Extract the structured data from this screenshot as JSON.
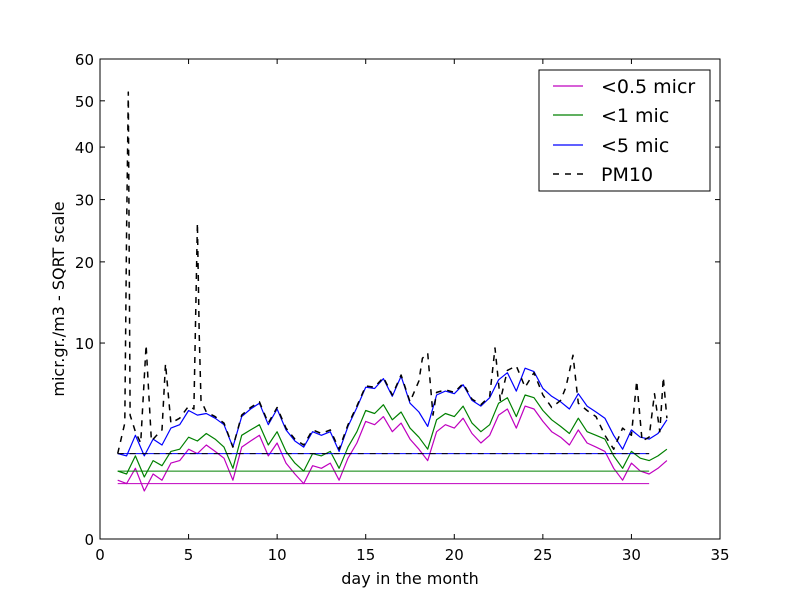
{
  "chart_data": {
    "type": "line",
    "title": "",
    "xlabel": "day in the month",
    "ylabel": "micr.gr./m3 - SQRT scale",
    "y_scale": "sqrt",
    "xlim": [
      0,
      35
    ],
    "ylim": [
      0,
      60
    ],
    "x_ticks": [
      0,
      5,
      10,
      15,
      20,
      25,
      30,
      35
    ],
    "y_ticks": [
      0,
      10,
      20,
      30,
      40,
      50,
      60
    ],
    "grid": false,
    "legend_position": "top-right",
    "series": [
      {
        "name": "<0.5 micr",
        "color": "#bf00bf",
        "style": "solid",
        "baseline": 0.8,
        "x": [
          1.0,
          1.5,
          2.0,
          2.5,
          3.0,
          3.5,
          4.0,
          4.5,
          5.0,
          5.5,
          6.0,
          6.5,
          7.0,
          7.5,
          8.0,
          8.5,
          9.0,
          9.5,
          10.0,
          10.5,
          11.0,
          11.5,
          12.0,
          12.5,
          13.0,
          13.5,
          14.0,
          14.5,
          15.0,
          15.5,
          16.0,
          16.5,
          17.0,
          17.5,
          18.0,
          18.5,
          19.0,
          19.5,
          20.0,
          20.5,
          21.0,
          21.5,
          22.0,
          22.5,
          23.0,
          23.5,
          24.0,
          24.5,
          25.0,
          25.5,
          26.0,
          26.5,
          27.0,
          27.5,
          28.0,
          28.5,
          29.0,
          29.5,
          30.0,
          30.5,
          31.0,
          31.5,
          32.0
        ],
        "y": [
          0.9,
          0.8,
          1.3,
          0.6,
          1.1,
          0.9,
          1.5,
          1.6,
          2.1,
          1.9,
          2.3,
          2.0,
          1.7,
          0.9,
          2.2,
          2.5,
          2.8,
          1.8,
          2.4,
          1.5,
          1.1,
          0.8,
          1.4,
          1.3,
          1.5,
          0.9,
          1.7,
          2.4,
          3.6,
          3.4,
          3.9,
          3.0,
          3.5,
          2.6,
          2.1,
          1.6,
          3.0,
          3.4,
          3.2,
          3.8,
          2.9,
          2.4,
          2.8,
          4.0,
          4.4,
          3.2,
          4.6,
          4.4,
          3.6,
          3.0,
          2.7,
          2.3,
          3.1,
          2.4,
          2.2,
          2.0,
          1.3,
          0.9,
          1.5,
          1.2,
          1.1,
          1.3,
          1.6
        ]
      },
      {
        "name": "<1 mic",
        "color": "#008000",
        "style": "solid",
        "baseline": 1.2,
        "x": [
          1.0,
          1.5,
          2.0,
          2.5,
          3.0,
          3.5,
          4.0,
          4.5,
          5.0,
          5.5,
          6.0,
          6.5,
          7.0,
          7.5,
          8.0,
          8.5,
          9.0,
          9.5,
          10.0,
          10.5,
          11.0,
          11.5,
          12.0,
          12.5,
          13.0,
          13.5,
          14.0,
          14.5,
          15.0,
          15.5,
          16.0,
          16.5,
          17.0,
          17.5,
          18.0,
          18.5,
          19.0,
          19.5,
          20.0,
          20.5,
          21.0,
          21.5,
          22.0,
          22.5,
          23.0,
          23.5,
          24.0,
          24.5,
          25.0,
          25.5,
          26.0,
          26.5,
          27.0,
          27.5,
          28.0,
          28.5,
          29.0,
          29.5,
          30.0,
          30.5,
          31.0,
          31.5,
          32.0
        ],
        "y": [
          1.2,
          1.1,
          1.8,
          1.0,
          1.6,
          1.4,
          2.0,
          2.1,
          2.7,
          2.5,
          2.9,
          2.6,
          2.2,
          1.3,
          2.8,
          3.1,
          3.4,
          2.3,
          3.0,
          2.0,
          1.5,
          1.2,
          1.9,
          1.8,
          2.0,
          1.3,
          2.2,
          3.0,
          4.3,
          4.1,
          4.7,
          3.7,
          4.2,
          3.2,
          2.7,
          2.1,
          3.7,
          4.1,
          3.9,
          4.6,
          3.5,
          3.0,
          3.4,
          4.8,
          5.2,
          3.9,
          5.4,
          5.2,
          4.3,
          3.7,
          3.3,
          2.9,
          3.8,
          3.0,
          2.8,
          2.6,
          1.8,
          1.3,
          2.0,
          1.7,
          1.6,
          1.8,
          2.1
        ]
      },
      {
        "name": "<5 mic",
        "color": "#0000ff",
        "style": "solid",
        "baseline": 1.9,
        "x": [
          1.0,
          1.5,
          2.0,
          2.5,
          3.0,
          3.5,
          4.0,
          4.5,
          5.0,
          5.5,
          6.0,
          6.5,
          7.0,
          7.5,
          8.0,
          8.5,
          9.0,
          9.5,
          10.0,
          10.5,
          11.0,
          11.5,
          12.0,
          12.5,
          13.0,
          13.5,
          14.0,
          14.5,
          15.0,
          15.5,
          16.0,
          16.5,
          17.0,
          17.5,
          18.0,
          18.5,
          19.0,
          19.5,
          20.0,
          20.5,
          21.0,
          21.5,
          22.0,
          22.5,
          23.0,
          23.5,
          24.0,
          24.5,
          25.0,
          25.5,
          26.0,
          26.5,
          27.0,
          27.5,
          28.0,
          28.5,
          29.0,
          29.5,
          30.0,
          30.5,
          31.0,
          31.5,
          32.0
        ],
        "y": [
          1.9,
          1.8,
          2.8,
          1.8,
          2.6,
          2.3,
          3.2,
          3.4,
          4.3,
          4.0,
          4.1,
          3.8,
          3.4,
          2.2,
          3.9,
          4.4,
          4.8,
          3.4,
          4.4,
          3.1,
          2.5,
          2.2,
          3.0,
          2.8,
          3.0,
          2.0,
          3.3,
          4.5,
          6.0,
          5.9,
          6.7,
          5.3,
          6.9,
          4.8,
          4.2,
          3.3,
          5.4,
          5.7,
          5.5,
          6.2,
          5.0,
          4.6,
          5.2,
          6.6,
          7.2,
          5.7,
          7.6,
          7.3,
          5.9,
          5.3,
          4.9,
          4.4,
          5.5,
          4.6,
          4.2,
          3.8,
          2.8,
          2.1,
          3.1,
          2.7,
          2.6,
          2.9,
          3.7
        ]
      },
      {
        "name": "PM10",
        "color": "#000000",
        "style": "dashed",
        "baseline": 1.9,
        "x": [
          1.0,
          1.4,
          1.5,
          1.6,
          1.7,
          2.0,
          2.3,
          2.6,
          2.9,
          3.2,
          3.5,
          3.7,
          4.0,
          4.5,
          5.0,
          5.3,
          5.5,
          5.6,
          5.7,
          6.0,
          6.5,
          7.0,
          7.5,
          8.0,
          8.5,
          9.0,
          9.5,
          10.0,
          10.5,
          11.0,
          11.5,
          12.0,
          12.5,
          13.0,
          13.5,
          14.0,
          14.5,
          15.0,
          15.5,
          16.0,
          16.5,
          17.0,
          17.5,
          18.0,
          18.2,
          18.5,
          18.8,
          19.0,
          19.5,
          20.0,
          20.5,
          21.0,
          21.5,
          22.0,
          22.3,
          22.6,
          23.0,
          23.5,
          24.0,
          24.5,
          25.0,
          25.5,
          26.0,
          26.3,
          26.7,
          27.0,
          27.5,
          28.0,
          28.5,
          29.0,
          29.5,
          30.0,
          30.3,
          30.6,
          31.0,
          31.3,
          31.6,
          31.8,
          32.0
        ],
        "y": [
          1.9,
          3.5,
          25.0,
          52.0,
          4.0,
          3.0,
          2.4,
          9.8,
          2.5,
          2.8,
          3.1,
          8.0,
          3.5,
          3.8,
          4.6,
          4.4,
          26.0,
          11.0,
          5.0,
          4.2,
          3.9,
          3.5,
          2.2,
          4.0,
          4.5,
          4.9,
          3.5,
          4.5,
          3.2,
          2.6,
          2.3,
          3.1,
          2.9,
          3.1,
          2.1,
          3.4,
          4.6,
          6.1,
          6.0,
          6.8,
          5.4,
          7.0,
          4.9,
          6.5,
          8.5,
          9.0,
          4.0,
          5.6,
          5.8,
          5.6,
          6.3,
          5.1,
          4.7,
          5.3,
          9.5,
          5.0,
          7.4,
          7.8,
          6.0,
          7.2,
          5.4,
          4.5,
          5.0,
          6.0,
          8.8,
          4.8,
          4.3,
          3.9,
          2.8,
          2.1,
          3.2,
          2.8,
          6.5,
          2.5,
          2.7,
          5.5,
          3.0,
          6.8,
          3.8
        ]
      }
    ]
  }
}
